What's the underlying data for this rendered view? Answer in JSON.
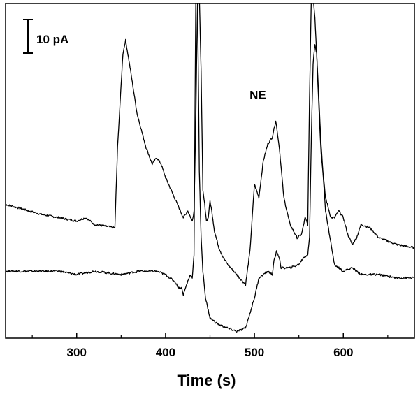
{
  "chart_data": {
    "type": "line",
    "xlabel": "Time (s)",
    "ylabel": "",
    "title": "",
    "xlim": [
      220,
      680
    ],
    "x_ticks": [
      300,
      400,
      500,
      600
    ],
    "x_tick_labels": [
      "300",
      "400",
      "500",
      "600"
    ],
    "ylim": [
      0,
      100
    ],
    "scale_bar_label": "10 pA",
    "scale_bar_value_pA": 10,
    "annotations": [
      {
        "text": "NE",
        "x": 525,
        "y": 73
      }
    ],
    "grid": false,
    "series": [
      {
        "x": [
          220,
          260,
          280,
          300,
          310,
          320,
          343,
          346,
          352,
          355,
          360,
          368,
          378,
          385,
          390,
          395,
          400,
          405,
          410,
          415,
          420,
          425,
          430,
          432,
          434,
          436,
          438,
          440,
          442,
          444,
          446,
          448,
          450,
          452,
          455,
          460,
          465,
          470,
          480,
          490,
          495,
          500,
          505,
          510,
          515,
          520,
          524,
          528,
          533,
          540,
          548,
          553,
          557,
          560,
          562,
          564,
          566,
          568,
          570,
          572,
          575,
          580,
          586,
          590,
          595,
          600,
          605,
          610,
          615,
          620,
          630,
          640,
          660,
          680
        ],
        "y": [
          40,
          37,
          36,
          35,
          36,
          34,
          33,
          57,
          85,
          89,
          81,
          67,
          57,
          52,
          54,
          52,
          48,
          45,
          42,
          39,
          36,
          38,
          35,
          38,
          65,
          102,
          102,
          80,
          44,
          40,
          35,
          36,
          41,
          38,
          32,
          27,
          24,
          22,
          19,
          16,
          26,
          46,
          42,
          53,
          58,
          60,
          65,
          57,
          42,
          34,
          30,
          31,
          36,
          34,
          72,
          102,
          102,
          96,
          85,
          72,
          55,
          42,
          36,
          36,
          38,
          36,
          31,
          28,
          30,
          34,
          33,
          30,
          28,
          27
        ]
      },
      {
        "x": [
          220,
          280,
          300,
          320,
          350,
          370,
          390,
          400,
          405,
          410,
          415,
          418,
          420,
          425,
          428,
          430,
          432,
          434,
          436,
          438,
          440,
          442,
          445,
          450,
          455,
          460,
          470,
          480,
          490,
          500,
          505,
          510,
          515,
          520,
          522,
          525,
          528,
          530,
          540,
          550,
          555,
          560,
          562,
          564,
          566,
          568,
          570,
          572,
          575,
          580,
          590,
          595,
          600,
          610,
          620,
          640,
          660,
          680
        ],
        "y": [
          20,
          20,
          19,
          20,
          19,
          20,
          20,
          19,
          18,
          17,
          15,
          15,
          13,
          17,
          19,
          18,
          25,
          102,
          102,
          50,
          30,
          20,
          12,
          6,
          5,
          4,
          3,
          2,
          3,
          12,
          18,
          19,
          20,
          19,
          23,
          26,
          24,
          21,
          21,
          22,
          24,
          25,
          30,
          60,
          82,
          88,
          85,
          74,
          58,
          38,
          22,
          21,
          20,
          21,
          19,
          19,
          18,
          18
        ]
      }
    ]
  }
}
